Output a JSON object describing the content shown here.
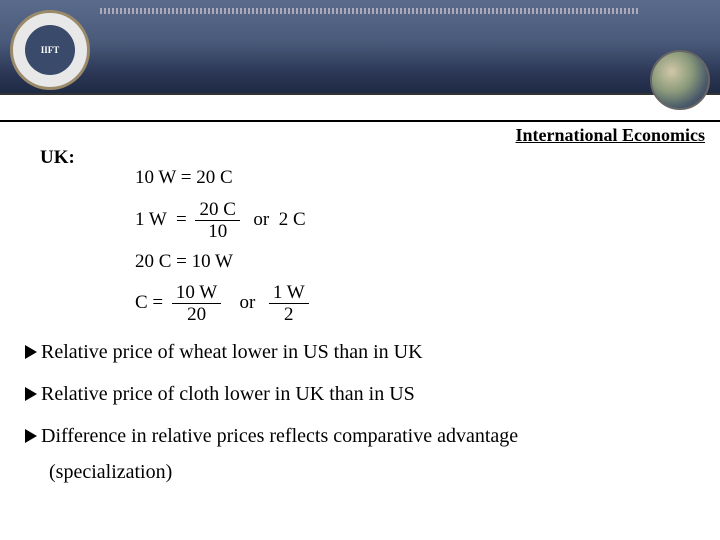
{
  "header": {
    "title": "International Economics",
    "logo_left_text": "IIFT"
  },
  "section_label": "UK:",
  "equations": {
    "line1": "10 W = 20 C",
    "line2_lhs": "1 W",
    "line2_eq": "=",
    "line2_frac_num": "20 C",
    "line2_frac_den": "10",
    "line2_or": "or",
    "line2_rhs": "2 C",
    "line3": "20 C = 10 W",
    "line4_lhs": "C =",
    "line4_frac_num": "10 W",
    "line4_frac_den": "20",
    "line4_or": "or",
    "line4_frac2_num": "1 W",
    "line4_frac2_den": "2"
  },
  "bullets": [
    "Relative price of wheat lower in US than in UK",
    "Relative price of cloth lower in UK than in US",
    "Difference in relative prices reflects comparative advantage"
  ],
  "specialization": "(specialization)",
  "colors": {
    "header_gradient_top": "#5a6b8c",
    "header_gradient_bottom": "#1f2a44",
    "text": "#000000",
    "background": "#ffffff"
  }
}
